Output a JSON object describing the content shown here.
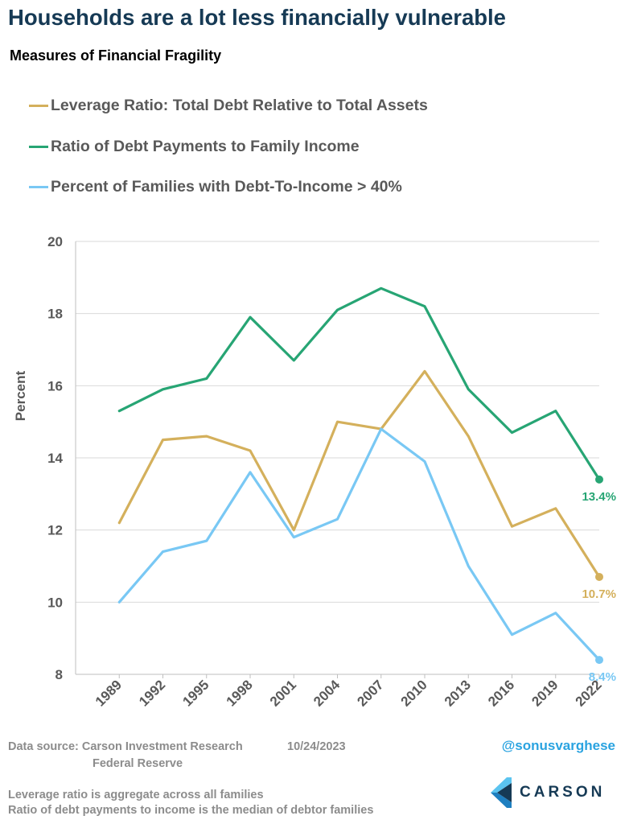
{
  "header": {
    "title": "Households are a lot less financially vulnerable",
    "subtitle": "Measures of Financial Fragility"
  },
  "chart_data": {
    "type": "line",
    "ylabel": "Percent",
    "ylim": [
      8,
      20
    ],
    "yticks": [
      "8",
      "10",
      "12",
      "14",
      "16",
      "18",
      "20"
    ],
    "grid": "horizontal",
    "categories": [
      "1989",
      "1992",
      "1995",
      "1998",
      "2001",
      "2004",
      "2007",
      "2010",
      "2013",
      "2016",
      "2019",
      "2022"
    ],
    "series": [
      {
        "name": "Leverage Ratio: Total Debt Relative to Total Assets",
        "color": "#d4b05c",
        "values": [
          12.2,
          14.5,
          14.6,
          14.2,
          12.0,
          15.0,
          14.8,
          16.4,
          14.6,
          12.1,
          12.6,
          10.7
        ],
        "end_label": "10.7%"
      },
      {
        "name": "Ratio of Debt Payments to Family Income",
        "color": "#27a574",
        "values": [
          15.3,
          15.9,
          16.2,
          17.9,
          16.7,
          18.1,
          18.7,
          18.2,
          15.9,
          14.7,
          15.3,
          13.4
        ],
        "end_label": "13.4%"
      },
      {
        "name": "Percent of Families with Debt-To-Income > 40%",
        "color": "#79c8f4",
        "values": [
          10.0,
          11.4,
          11.7,
          13.6,
          11.8,
          12.3,
          14.8,
          13.9,
          11.0,
          9.1,
          9.7,
          8.4
        ],
        "end_label": "8.4%"
      }
    ]
  },
  "footer": {
    "source_label": "Data source: Carson Investment Research",
    "date": "10/24/2023",
    "source_line2": "Federal Reserve",
    "note1": "Leverage ratio is aggregate across all families",
    "note2": "Ratio of debt payments to income is the median of debtor families",
    "handle": "@sonusvarghese",
    "brand": "CARSON"
  }
}
